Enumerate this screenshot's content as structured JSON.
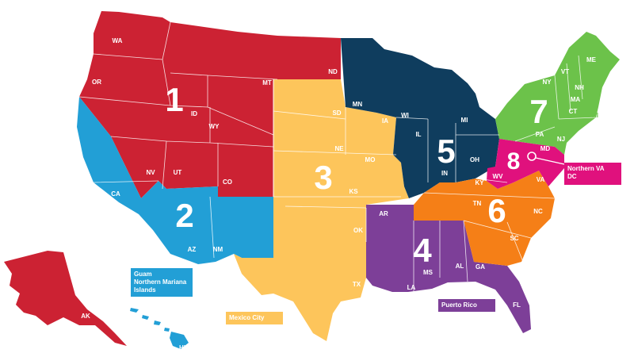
{
  "colors": {
    "region_1": "#cc2233",
    "region_2": "#229fd6",
    "region_3": "#fdc55b",
    "region_4": "#7d3f98",
    "region_5": "#0f3d5e",
    "region_6": "#f57f17",
    "region_7": "#6cc24a",
    "region_8": "#e0117d"
  },
  "regions": [
    {
      "number": "1",
      "states": [
        "WA",
        "OR",
        "ID",
        "MT",
        "WY",
        "NV",
        "UT",
        "CO",
        "ND",
        "AK"
      ]
    },
    {
      "number": "2",
      "states": [
        "CA",
        "AZ",
        "NM",
        "HI"
      ]
    },
    {
      "number": "3",
      "states": [
        "SD",
        "NE",
        "KS",
        "OK",
        "TX",
        "IA",
        "MO"
      ]
    },
    {
      "number": "4",
      "states": [
        "AR",
        "LA",
        "MS",
        "AL",
        "FL"
      ]
    },
    {
      "number": "5",
      "states": [
        "MN",
        "WI",
        "MI",
        "IL",
        "IN",
        "OH"
      ]
    },
    {
      "number": "6",
      "states": [
        "KY",
        "TN",
        "NC",
        "SC",
        "GA",
        "VA"
      ]
    },
    {
      "number": "7",
      "states": [
        "ME",
        "NH",
        "VT",
        "NY",
        "MA",
        "CT",
        "RI",
        "NJ",
        "PA"
      ]
    },
    {
      "number": "8",
      "states": [
        "MD",
        "DE",
        "WV"
      ]
    }
  ],
  "callouts": {
    "guam": "Guam\nNorthern Mariana\nIslands",
    "mexico_city": "Mexico City",
    "puerto_rico": "Puerto Rico",
    "northern_va": "Northern VA\nDC"
  }
}
